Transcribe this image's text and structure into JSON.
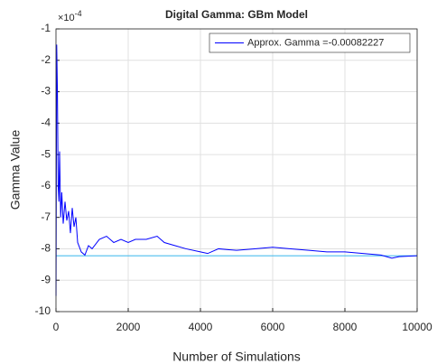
{
  "chart_data": {
    "type": "line",
    "title": "Digital Gamma: GBm Model",
    "xlabel": "Number of Simulations",
    "ylabel": "Gamma Value",
    "y_exponent": {
      "base": "×10",
      "power": "-4"
    },
    "x": [
      1,
      20,
      40,
      60,
      80,
      100,
      130,
      160,
      200,
      250,
      300,
      350,
      400,
      450,
      500,
      550,
      600,
      700,
      800,
      900,
      1000,
      1200,
      1400,
      1600,
      1800,
      2000,
      2200,
      2500,
      2800,
      3000,
      3300,
      3600,
      4000,
      4200,
      4500,
      5000,
      5500,
      6000,
      6500,
      7000,
      7500,
      8000,
      8500,
      9000,
      9300,
      9500,
      10000
    ],
    "series": [
      {
        "name": "Approx. Gamma =-0.00082227",
        "color": "#0000ff",
        "values": [
          -9.5,
          -1.5,
          -3,
          -6,
          -6.5,
          -4.9,
          -7.0,
          -6.2,
          -7.2,
          -6.5,
          -7.1,
          -6.8,
          -7.5,
          -6.7,
          -7.3,
          -7.0,
          -7.8,
          -8.1,
          -8.2,
          -7.9,
          -8.0,
          -7.7,
          -7.6,
          -7.8,
          -7.7,
          -7.8,
          -7.7,
          -7.7,
          -7.6,
          -7.8,
          -7.9,
          -8.0,
          -8.1,
          -8.15,
          -8.0,
          -8.05,
          -8.0,
          -7.95,
          -8.0,
          -8.05,
          -8.1,
          -8.1,
          -8.15,
          -8.2,
          -8.3,
          -8.25,
          -8.22
        ]
      }
    ],
    "reference_line": {
      "value": -8.2227,
      "color": "#4dbeee"
    },
    "xlim": [
      0,
      10000
    ],
    "xticks": [
      0,
      2000,
      4000,
      6000,
      8000,
      10000
    ],
    "ylim": [
      -10,
      -1
    ],
    "yticks": [
      -10,
      -9,
      -8,
      -7,
      -6,
      -5,
      -4,
      -3,
      -2,
      -1
    ],
    "grid": true,
    "legend": "upper right"
  }
}
